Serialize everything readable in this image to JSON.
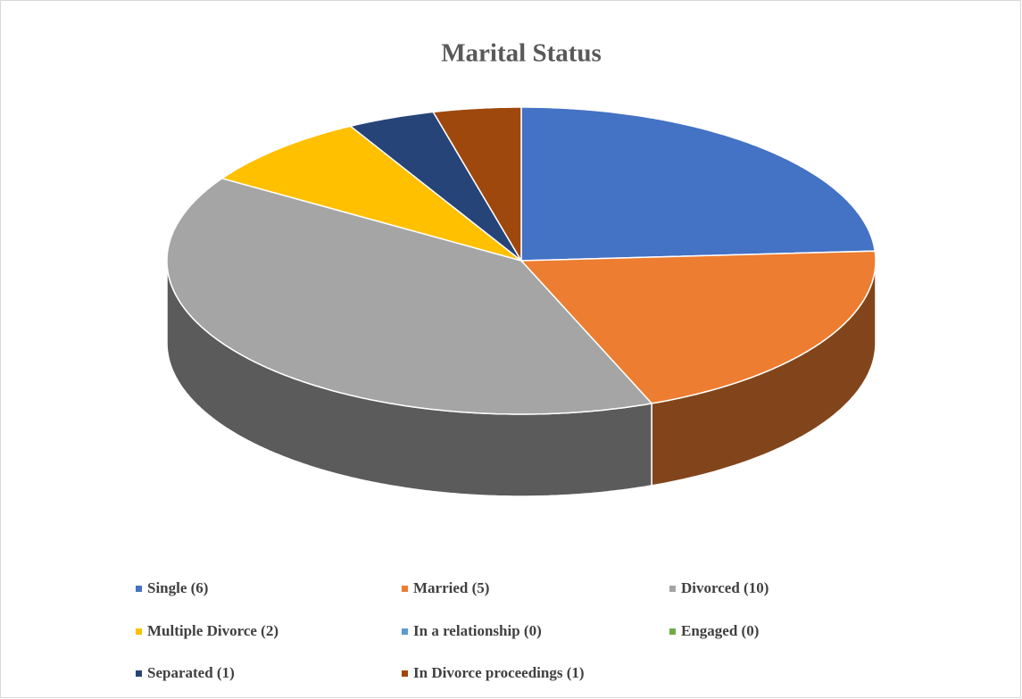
{
  "chart_data": {
    "type": "pie",
    "title": "Marital Status",
    "categories": [
      "Single (6)",
      "Married (5)",
      "Divorced (10)",
      "Multiple Divorce (2)",
      "In a relationship (0)",
      "Engaged (0)",
      "Separated (1)",
      "In Divorce proceedings (1)"
    ],
    "values": [
      6,
      5,
      10,
      2,
      0,
      0,
      1,
      1
    ],
    "colors": [
      "#4472c4",
      "#ed7d31",
      "#a5a5a5",
      "#ffc000",
      "#5b9bd5",
      "#70ad47",
      "#264478",
      "#9e480e"
    ],
    "legend": "bottom"
  }
}
